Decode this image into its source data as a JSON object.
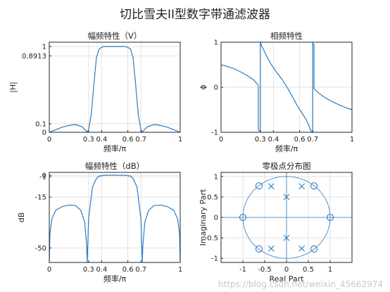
{
  "figure": {
    "title": "切比雪夫II型数字带通滤波器",
    "watermark": "https://blog.csdn.net/weixin_45662974"
  },
  "colors": {
    "curve": "#2b7bbf",
    "grid": "#e2e2e2",
    "axes": "#262626"
  },
  "chart_data": [
    {
      "type": "line",
      "title": "幅频特性（V）",
      "xlabel": "频率/π",
      "ylabel": "|H|",
      "xlim": [
        0,
        1
      ],
      "ylim": [
        0,
        1.05
      ],
      "xticks": [
        0,
        0.3,
        0.4,
        0.6,
        0.7,
        1
      ],
      "xtick_labels": [
        "0",
        "0.3",
        "0.4",
        "0.6",
        "0.7",
        "1"
      ],
      "yticks": [
        0,
        0.1,
        0.8913,
        1
      ],
      "ytick_labels": [
        "0",
        "0.1",
        "0.8913",
        "1"
      ],
      "grid": true,
      "x": [
        0,
        0.05,
        0.1,
        0.15,
        0.2,
        0.25,
        0.28,
        0.29,
        0.3,
        0.32,
        0.34,
        0.36,
        0.38,
        0.4,
        0.42,
        0.45,
        0.5,
        0.55,
        0.58,
        0.6,
        0.62,
        0.64,
        0.66,
        0.68,
        0.7,
        0.71,
        0.72,
        0.75,
        0.8,
        0.85,
        0.9,
        0.95,
        1
      ],
      "y": [
        0,
        0.03,
        0.06,
        0.08,
        0.09,
        0.065,
        0.02,
        0.0,
        0.03,
        0.2,
        0.55,
        0.87,
        0.97,
        0.99,
        1.0,
        1.0,
        1.0,
        1.0,
        1.0,
        0.99,
        0.97,
        0.87,
        0.55,
        0.2,
        0.03,
        0.0,
        0.02,
        0.065,
        0.09,
        0.08,
        0.06,
        0.03,
        0
      ]
    },
    {
      "type": "line",
      "title": "相频特性",
      "xlabel": "频率/π",
      "ylabel": "ϕ",
      "xlim": [
        0,
        1
      ],
      "ylim": [
        -1,
        1
      ],
      "xticks": [
        0,
        0.3,
        0.4,
        0.6,
        0.7,
        1
      ],
      "xtick_labels": [
        "0",
        "0.3",
        "0.4",
        "0.6",
        "0.7",
        "1"
      ],
      "yticks": [
        -1,
        0,
        1
      ],
      "ytick_labels": [
        "-1",
        "0",
        "1"
      ],
      "grid": true,
      "x": [
        0,
        0.05,
        0.1,
        0.15,
        0.2,
        0.25,
        0.28,
        0.285,
        0.285,
        0.3,
        0.3,
        0.31,
        0.33,
        0.35,
        0.38,
        0.42,
        0.46,
        0.5,
        0.54,
        0.58,
        0.62,
        0.65,
        0.67,
        0.68,
        0.69,
        0.7,
        0.7,
        0.71,
        0.71,
        0.72,
        0.75,
        0.8,
        0.85,
        0.9,
        0.95,
        1
      ],
      "y": [
        0.5,
        0.46,
        0.41,
        0.34,
        0.26,
        0.16,
        0.06,
        0.03,
        -0.95,
        -0.98,
        1.0,
        0.92,
        0.8,
        0.68,
        0.52,
        0.35,
        0.2,
        0.02,
        -0.18,
        -0.4,
        -0.58,
        -0.72,
        -0.84,
        -0.92,
        -0.98,
        -1.0,
        0.98,
        0.95,
        -0.03,
        -0.06,
        -0.14,
        -0.24,
        -0.32,
        -0.39,
        -0.45,
        -0.5
      ]
    },
    {
      "type": "line",
      "title": "幅频特性（dB）",
      "xlabel": "频率/π",
      "ylabel": "dB",
      "xlim": [
        0,
        1
      ],
      "ylim": [
        -60,
        2
      ],
      "xticks": [
        0,
        0.3,
        0.4,
        0.6,
        0.7,
        1
      ],
      "xtick_labels": [
        "0",
        "0.3",
        "0.4",
        "0.6",
        "0.7",
        "1"
      ],
      "yticks": [
        -50,
        -15,
        -1,
        0
      ],
      "ytick_labels": [
        "-50",
        "-15",
        "-1",
        "0"
      ],
      "grid": true,
      "x": [
        0,
        0.005,
        0.02,
        0.05,
        0.1,
        0.15,
        0.2,
        0.24,
        0.27,
        0.285,
        0.29,
        0.3,
        0.33,
        0.36,
        0.38,
        0.4,
        0.42,
        0.5,
        0.58,
        0.6,
        0.62,
        0.64,
        0.67,
        0.7,
        0.71,
        0.715,
        0.73,
        0.76,
        0.8,
        0.85,
        0.9,
        0.95,
        0.98,
        0.995,
        1
      ],
      "y": [
        -60,
        -40,
        -30,
        -24,
        -21.5,
        -20.5,
        -20.8,
        -24,
        -32,
        -48,
        -60,
        -30,
        -8,
        -2.2,
        -0.6,
        -0.3,
        0,
        0,
        0,
        -0.3,
        -0.6,
        -2.2,
        -8,
        -30,
        -60,
        -48,
        -32,
        -24,
        -20.8,
        -20.5,
        -21.5,
        -24,
        -30,
        -40,
        -60
      ]
    },
    {
      "type": "scatter",
      "title": "零极点分布图",
      "xlabel": "Real Part",
      "ylabel": "Imaginary Part",
      "xlim": [
        -1.5,
        1.5
      ],
      "ylim": [
        -1.1,
        1.1
      ],
      "xticks": [
        -1,
        -0.5,
        0,
        0.5,
        1
      ],
      "xtick_labels": [
        "-1",
        "-0.5",
        "0",
        "0.5",
        "1"
      ],
      "yticks": [
        -1,
        -0.5,
        0,
        0.5,
        1
      ],
      "ytick_labels": [
        "-1",
        "-0.5",
        "0",
        "0.5",
        "1"
      ],
      "grid": true,
      "unit_circle": true,
      "zeros": [
        [
          -1,
          0
        ],
        [
          1,
          0
        ],
        [
          -0.63,
          0.77
        ],
        [
          -0.63,
          -0.77
        ],
        [
          0.63,
          0.77
        ],
        [
          0.63,
          -0.77
        ]
      ],
      "poles": [
        [
          -0.35,
          0.76
        ],
        [
          -0.35,
          -0.76
        ],
        [
          0.35,
          0.76
        ],
        [
          0.35,
          -0.76
        ],
        [
          0,
          0.5
        ],
        [
          0,
          -0.5
        ]
      ]
    }
  ]
}
